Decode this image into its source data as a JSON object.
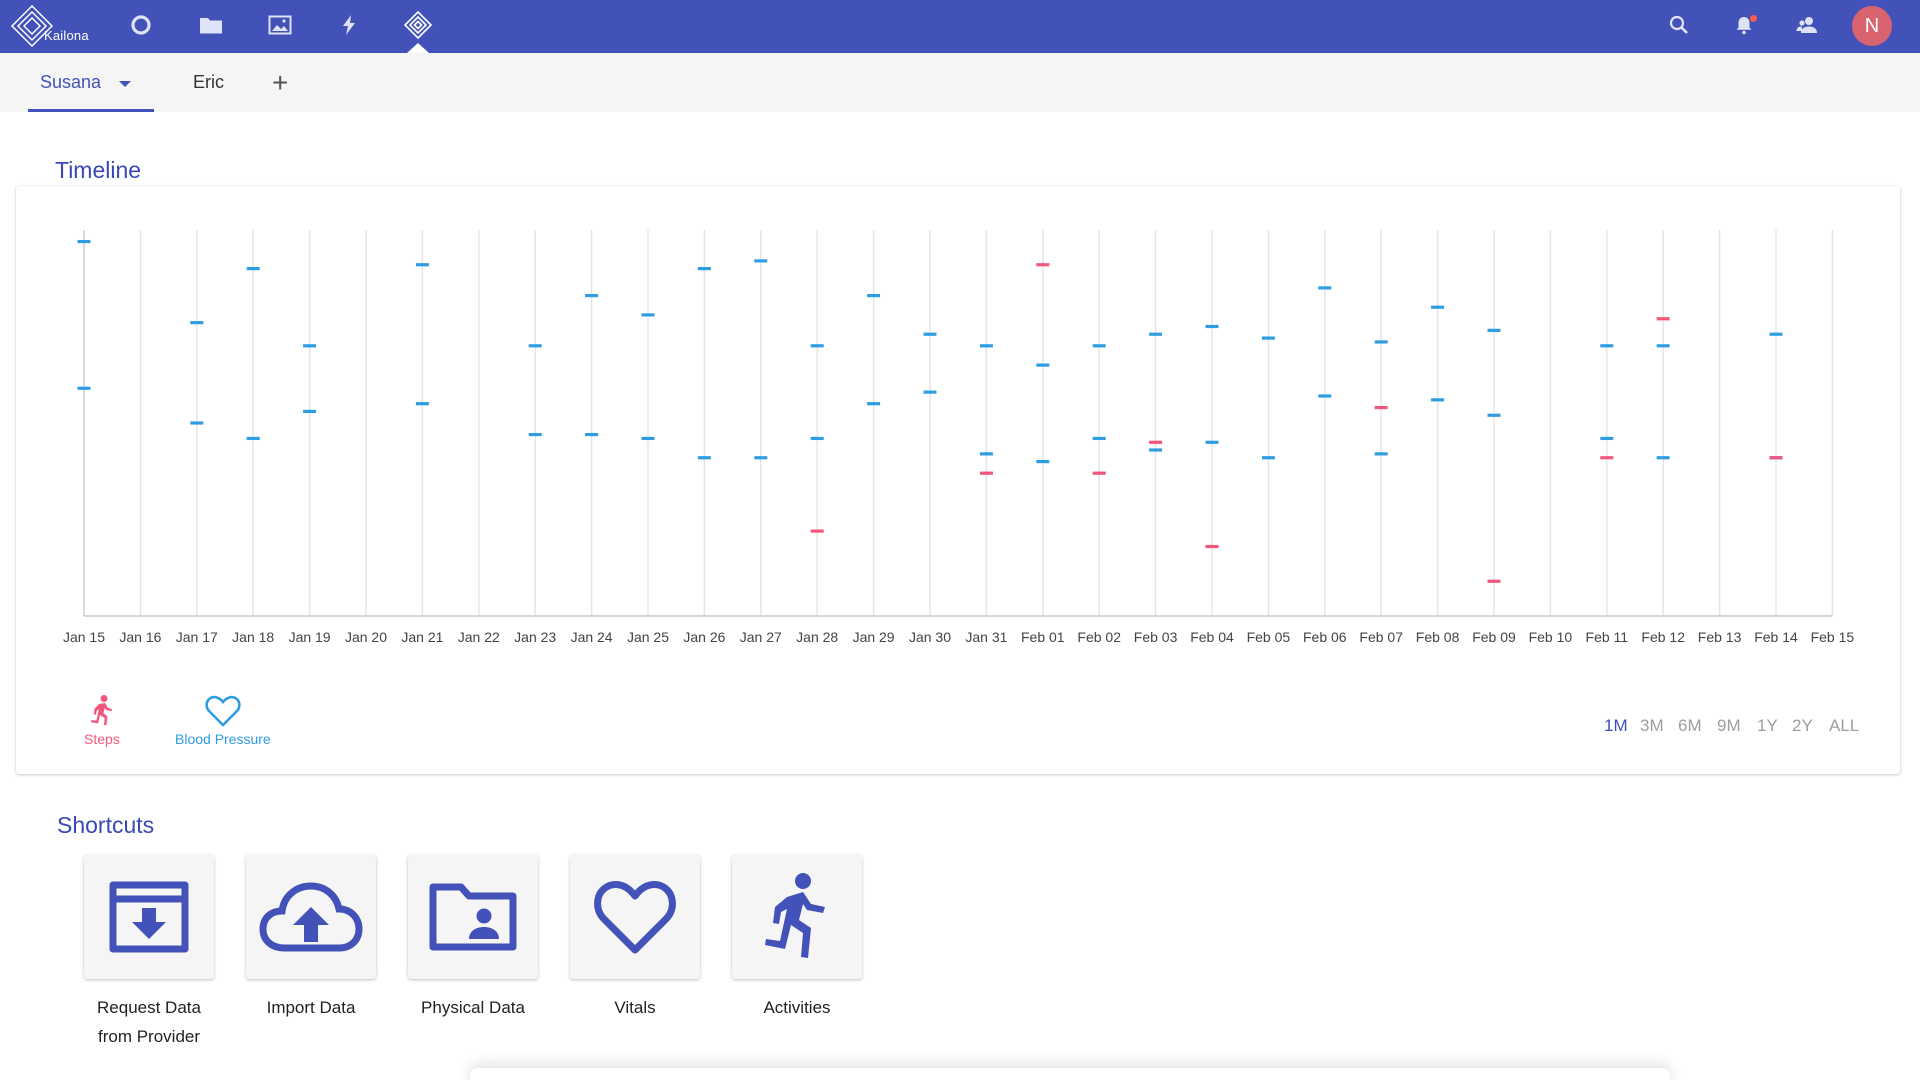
{
  "app": {
    "logo_text": "Kailona"
  },
  "nav": {
    "icons": [
      "circle-icon",
      "folder-icon",
      "image-icon",
      "bolt-icon",
      "diamond-icon"
    ],
    "active_index": 4,
    "user_initial": "N"
  },
  "tabs": [
    {
      "label": "Susana",
      "active": true
    },
    {
      "label": "Eric",
      "active": false
    }
  ],
  "add_tab_label": "+",
  "timeline": {
    "title": "Timeline",
    "legend": [
      {
        "label": "Steps",
        "color": "#f2567a",
        "icon": "running-icon"
      },
      {
        "label": "Blood Pressure",
        "color": "#2f9de2",
        "icon": "heart-icon"
      }
    ],
    "ranges": [
      "1M",
      "3M",
      "6M",
      "9M",
      "1Y",
      "2Y",
      "ALL"
    ],
    "active_range": "1M"
  },
  "chart_data": {
    "type": "scatter",
    "title": "",
    "xlabel": "",
    "ylabel": "",
    "x_ticks": [
      "Jan 15",
      "Jan 16",
      "Jan 17",
      "Jan 18",
      "Jan 19",
      "Jan 20",
      "Jan 21",
      "Jan 22",
      "Jan 23",
      "Jan 24",
      "Jan 25",
      "Jan 26",
      "Jan 27",
      "Jan 28",
      "Jan 29",
      "Jan 30",
      "Jan 31",
      "Feb 01",
      "Feb 02",
      "Feb 03",
      "Feb 04",
      "Feb 05",
      "Feb 06",
      "Feb 07",
      "Feb 08",
      "Feb 09",
      "Feb 10",
      "Feb 11",
      "Feb 12",
      "Feb 13",
      "Feb 14",
      "Feb 15"
    ],
    "ylim": [
      0,
      100
    ],
    "grid": true,
    "series": [
      {
        "name": "Blood Pressure",
        "color": "#2f9de2",
        "points": [
          {
            "x": "Jan 15",
            "y": 97
          },
          {
            "x": "Jan 15",
            "y": 59
          },
          {
            "x": "Jan 17",
            "y": 76
          },
          {
            "x": "Jan 17",
            "y": 50
          },
          {
            "x": "Jan 18",
            "y": 90
          },
          {
            "x": "Jan 18",
            "y": 46
          },
          {
            "x": "Jan 19",
            "y": 70
          },
          {
            "x": "Jan 19",
            "y": 53
          },
          {
            "x": "Jan 21",
            "y": 91
          },
          {
            "x": "Jan 21",
            "y": 55
          },
          {
            "x": "Jan 23",
            "y": 70
          },
          {
            "x": "Jan 23",
            "y": 47
          },
          {
            "x": "Jan 24",
            "y": 83
          },
          {
            "x": "Jan 24",
            "y": 47
          },
          {
            "x": "Jan 25",
            "y": 78
          },
          {
            "x": "Jan 25",
            "y": 46
          },
          {
            "x": "Jan 26",
            "y": 90
          },
          {
            "x": "Jan 26",
            "y": 41
          },
          {
            "x": "Jan 27",
            "y": 92
          },
          {
            "x": "Jan 27",
            "y": 41
          },
          {
            "x": "Jan 28",
            "y": 70
          },
          {
            "x": "Jan 28",
            "y": 46
          },
          {
            "x": "Jan 29",
            "y": 83
          },
          {
            "x": "Jan 29",
            "y": 55
          },
          {
            "x": "Jan 30",
            "y": 73
          },
          {
            "x": "Jan 30",
            "y": 58
          },
          {
            "x": "Jan 31",
            "y": 70
          },
          {
            "x": "Jan 31",
            "y": 42
          },
          {
            "x": "Feb 01",
            "y": 65
          },
          {
            "x": "Feb 01",
            "y": 40
          },
          {
            "x": "Feb 02",
            "y": 70
          },
          {
            "x": "Feb 02",
            "y": 46
          },
          {
            "x": "Feb 03",
            "y": 73
          },
          {
            "x": "Feb 03",
            "y": 43
          },
          {
            "x": "Feb 04",
            "y": 75
          },
          {
            "x": "Feb 04",
            "y": 45
          },
          {
            "x": "Feb 05",
            "y": 72
          },
          {
            "x": "Feb 05",
            "y": 41
          },
          {
            "x": "Feb 06",
            "y": 85
          },
          {
            "x": "Feb 06",
            "y": 57
          },
          {
            "x": "Feb 07",
            "y": 71
          },
          {
            "x": "Feb 07",
            "y": 42
          },
          {
            "x": "Feb 08",
            "y": 80
          },
          {
            "x": "Feb 08",
            "y": 56
          },
          {
            "x": "Feb 09",
            "y": 74
          },
          {
            "x": "Feb 09",
            "y": 52
          },
          {
            "x": "Feb 11",
            "y": 70
          },
          {
            "x": "Feb 11",
            "y": 46
          },
          {
            "x": "Feb 12",
            "y": 70
          },
          {
            "x": "Feb 12",
            "y": 41
          },
          {
            "x": "Feb 14",
            "y": 73
          },
          {
            "x": "Feb 14",
            "y": 41
          }
        ]
      },
      {
        "name": "Steps",
        "color": "#f2567a",
        "points": [
          {
            "x": "Jan 28",
            "y": 22
          },
          {
            "x": "Jan 31",
            "y": 37
          },
          {
            "x": "Feb 01",
            "y": 91
          },
          {
            "x": "Feb 02",
            "y": 37
          },
          {
            "x": "Feb 03",
            "y": 45
          },
          {
            "x": "Feb 04",
            "y": 18
          },
          {
            "x": "Feb 07",
            "y": 54
          },
          {
            "x": "Feb 09",
            "y": 9
          },
          {
            "x": "Feb 11",
            "y": 41
          },
          {
            "x": "Feb 12",
            "y": 77
          },
          {
            "x": "Feb 14",
            "y": 41
          }
        ]
      }
    ]
  },
  "shortcuts": {
    "title": "Shortcuts",
    "items": [
      {
        "label_lines": [
          "Request Data",
          "from Provider"
        ],
        "icon": "archive-download-icon"
      },
      {
        "label_lines": [
          "Import Data"
        ],
        "icon": "cloud-upload-icon"
      },
      {
        "label_lines": [
          "Physical Data"
        ],
        "icon": "folder-person-icon"
      },
      {
        "label_lines": [
          "Vitals"
        ],
        "icon": "heart-icon"
      },
      {
        "label_lines": [
          "Activities"
        ],
        "icon": "running-icon"
      }
    ]
  }
}
